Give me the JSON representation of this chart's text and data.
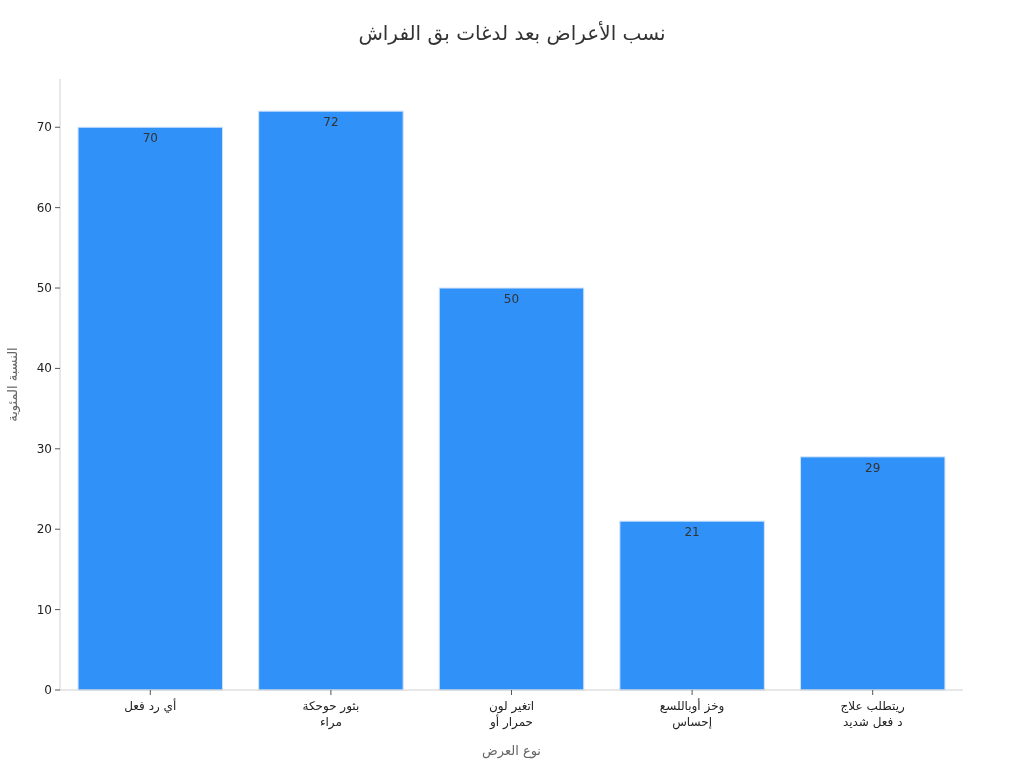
{
  "chart_data": {
    "type": "bar",
    "title": "نسب الأعراض بعد لدغات بق الفراش",
    "xlabel": "نوع العرض",
    "ylabel": "النسبة المئوية",
    "categories": [
      "أي رد فعل",
      "بثور حوحكة\nمراء",
      "اتغير لون\nحمرار أو",
      "وخز أوباللسع\nإحساس",
      "ريتطلب علاج\nد فعل شديد"
    ],
    "values": [
      70,
      72,
      50,
      21,
      29
    ],
    "color": "#3091f8",
    "ylim": [
      0,
      76
    ],
    "yticks": [
      0,
      10,
      20,
      30,
      40,
      50,
      60,
      70
    ],
    "data_labels": true,
    "grid": false
  }
}
